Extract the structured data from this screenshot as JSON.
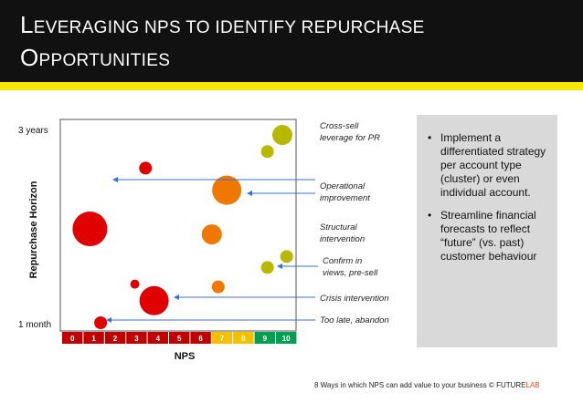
{
  "title": {
    "line1": "Leveraging NPS to identify repurchase",
    "line2": "opportunities"
  },
  "colors": {
    "title_bg": "#111111",
    "stripe": "#f5e800",
    "arrow": "#3a6fd8",
    "red": "#e00000",
    "orange": "#f07800",
    "olive": "#b8b800",
    "nps_detractor": "#c00000",
    "nps_passive": "#f5c000",
    "nps_promoter": "#00a050"
  },
  "chart_data": {
    "type": "scatter",
    "xlabel": "NPS",
    "ylabel": "Repurchase Horizon",
    "y_tick_labels": [
      "3 years",
      "1 month"
    ],
    "x_categories": [
      "0",
      "1",
      "2",
      "3",
      "4",
      "5",
      "6",
      "7",
      "8",
      "9",
      "10"
    ],
    "x_category_colors": [
      "#c00000",
      "#c00000",
      "#c00000",
      "#c00000",
      "#c00000",
      "#c00000",
      "#c00000",
      "#f5c000",
      "#f5c000",
      "#00a050",
      "#00a050"
    ],
    "y_range_months": [
      1,
      36
    ],
    "points": [
      {
        "nps": 9.8,
        "horizon_months": 35,
        "size": 3,
        "color": "olive"
      },
      {
        "nps": 9.1,
        "horizon_months": 32,
        "size": 2,
        "color": "olive"
      },
      {
        "nps": 3.4,
        "horizon_months": 29,
        "size": 2,
        "color": "red"
      },
      {
        "nps": 7.2,
        "horizon_months": 25,
        "size": 4,
        "color": "orange"
      },
      {
        "nps": 0.8,
        "horizon_months": 18,
        "size": 5,
        "color": "red"
      },
      {
        "nps": 6.5,
        "horizon_months": 17,
        "size": 3,
        "color": "orange"
      },
      {
        "nps": 10.0,
        "horizon_months": 13,
        "size": 2,
        "color": "olive"
      },
      {
        "nps": 9.1,
        "horizon_months": 11,
        "size": 2,
        "color": "olive"
      },
      {
        "nps": 2.9,
        "horizon_months": 8,
        "size": 1,
        "color": "red"
      },
      {
        "nps": 6.8,
        "horizon_months": 7.5,
        "size": 2,
        "color": "orange"
      },
      {
        "nps": 3.8,
        "horizon_months": 5,
        "size": 4,
        "color": "red"
      },
      {
        "nps": 1.3,
        "horizon_months": 1,
        "size": 2,
        "color": "red"
      }
    ],
    "annotations": [
      {
        "lines": [
          "Cross-sell",
          "leverage for PR"
        ],
        "arrow_to": null
      },
      {
        "lines": [
          "Operational",
          "improvement"
        ],
        "arrow_to": "left-edge"
      },
      {
        "lines": [
          "Structural",
          "intervention"
        ],
        "arrow_to": null
      },
      {
        "lines": [
          "Confirm in",
          "views, pre-sell"
        ],
        "arrow_to": "nps-9"
      },
      {
        "lines": [
          "Crisis intervention"
        ],
        "arrow_to": "nps-4"
      },
      {
        "lines": [
          "Too late, abandon"
        ],
        "arrow_to": "nps-1"
      }
    ]
  },
  "side_panel": {
    "bullets": [
      "Implement a differentiated strategy per account type (cluster) or even individual account.",
      "Streamline financial forecasts to reflect “future” (vs. past) customer behaviour"
    ]
  },
  "footer": {
    "text": "8 Ways in which NPS can add value to your business",
    "copyright": "©",
    "brand_future": "FUTURE",
    "brand_lab": "LAB"
  }
}
